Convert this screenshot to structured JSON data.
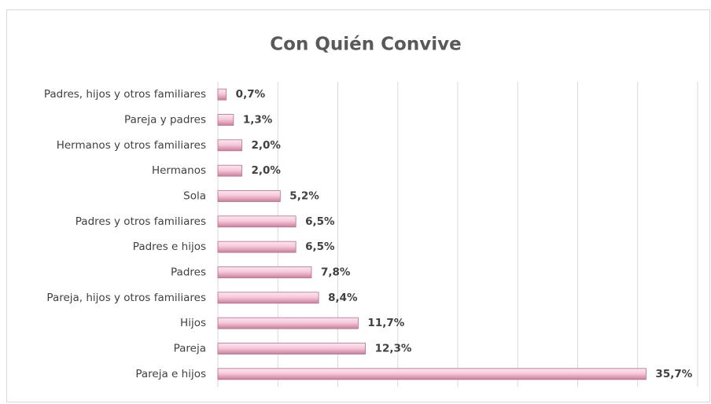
{
  "chart_data": {
    "type": "bar",
    "orientation": "horizontal",
    "title": "Con Quién Convive",
    "categories": [
      "Padres, hijos y otros familiares",
      "Pareja y padres",
      "Hermanos y otros familiares",
      "Hermanos",
      "Sola",
      "Padres y otros familiares",
      "Padres e hijos",
      "Padres",
      "Pareja, hijos y otros familiares",
      "Hijos",
      "Pareja",
      "Pareja e hijos"
    ],
    "values": [
      0.7,
      1.3,
      2.0,
      2.0,
      5.2,
      6.5,
      6.5,
      7.8,
      8.4,
      11.7,
      12.3,
      35.7
    ],
    "value_labels": [
      "0,7%",
      "1,3%",
      "2,0%",
      "2,0%",
      "5,2%",
      "6,5%",
      "6,5%",
      "7,8%",
      "8,4%",
      "11,7%",
      "12,3%",
      "35,7%"
    ],
    "color": "#f2b8cf",
    "xlim": [
      0,
      40
    ],
    "xticks": [
      0,
      5,
      10,
      15,
      20,
      25,
      30,
      35,
      40
    ],
    "grid": true
  }
}
